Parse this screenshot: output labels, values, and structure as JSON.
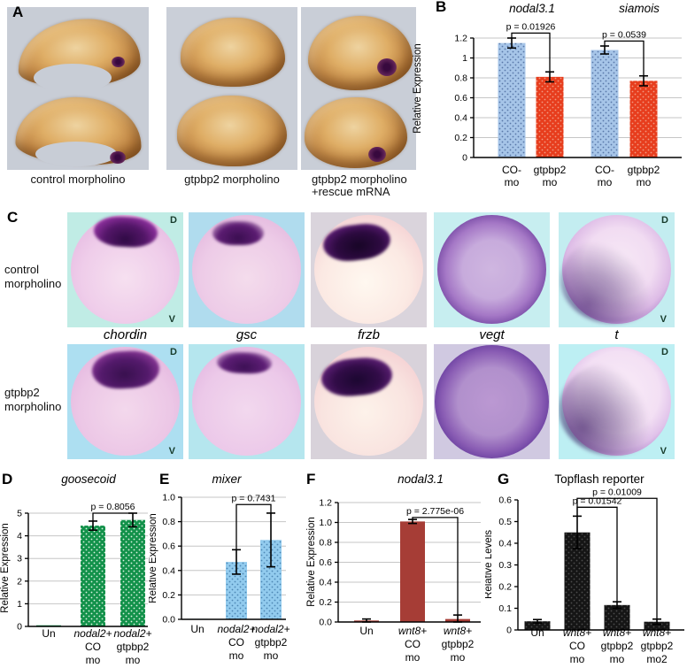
{
  "figure": {
    "panels": {
      "A": {
        "letter": "A",
        "captions": [
          "control morpholino",
          "gtpbp2 morpholino",
          "gtpbp2 morpholino\n+rescue mRNA"
        ]
      },
      "C": {
        "letter": "C",
        "row_labels": [
          "control\nmorpholino",
          "gtpbp2\nmorpholino"
        ],
        "gene_labels": [
          "chordin",
          "gsc",
          "frzb",
          "vegt",
          "t"
        ],
        "dorsal": "D",
        "ventral": "V"
      }
    }
  },
  "palette": {
    "blue": {
      "fill": "#a6c5e8",
      "dot": "#5878a8"
    },
    "red": {
      "fill": "#e73d1d",
      "dot": "#f19a82"
    },
    "green": {
      "fill": "#12914a",
      "dot": "#dff3e4"
    },
    "lightblue": {
      "fill": "#92cbee",
      "dot": "#4e86b4"
    },
    "brick": {
      "fill": "#a63d36",
      "dot": null
    },
    "black": {
      "fill": "#151515",
      "dot": "#4d4d4d"
    }
  },
  "chart_data": [
    {
      "id": "B",
      "panel_letter": "B",
      "type": "bar",
      "titles": [
        {
          "text": "nodal3.1",
          "italic": true
        },
        {
          "text": "siamois",
          "italic": true
        }
      ],
      "ylabel": "Relative Expression",
      "ylim": [
        0,
        1.2
      ],
      "ystep": 0.2,
      "ytick_labels": [
        "0",
        "0.2",
        "0.4",
        "0.6",
        "0.8",
        "1",
        "1.2"
      ],
      "grid": true,
      "categories": [
        "CO- mo",
        "gtpbp2 mo",
        "CO- mo",
        "gtpbp2 mo"
      ],
      "values": [
        1.15,
        0.81,
        1.08,
        0.77
      ],
      "errors": [
        0.05,
        0.05,
        0.04,
        0.05
      ],
      "bars": [
        {
          "label_lines": [
            {
              "t": "CO-"
            },
            {
              "t": "mo"
            }
          ],
          "color": "blue"
        },
        {
          "label_lines": [
            {
              "t": "gtpbp2"
            },
            {
              "t": "mo"
            }
          ],
          "color": "red"
        },
        {
          "label_lines": [
            {
              "t": "CO-"
            },
            {
              "t": "mo"
            }
          ],
          "color": "blue"
        },
        {
          "label_lines": [
            {
              "t": "gtpbp2"
            },
            {
              "t": "mo"
            }
          ],
          "color": "red"
        }
      ],
      "brackets": [
        {
          "from": 0,
          "to": 1,
          "level": 1.25,
          "label": "p = 0.01926"
        },
        {
          "from": 2,
          "to": 3,
          "level": 1.17,
          "label": "p = 0.0539"
        }
      ]
    },
    {
      "id": "D",
      "panel_letter": "D",
      "type": "bar",
      "titles": [
        {
          "text": "goosecoid",
          "italic": true
        }
      ],
      "ylabel": "Relative Expression",
      "ylim": [
        0,
        5
      ],
      "ystep": 1,
      "ytick_labels": [
        "0",
        "1",
        "2",
        "3",
        "4",
        "5"
      ],
      "grid": true,
      "categories": [
        "Un",
        "nodal2+ CO mo",
        "nodal2+ gtpbp2 mo"
      ],
      "values": [
        0.05,
        4.45,
        4.7
      ],
      "errors": [
        0,
        0.2,
        0.3
      ],
      "bars": [
        {
          "label_lines": [
            {
              "t": "Un"
            }
          ],
          "color": "green"
        },
        {
          "label_lines": [
            {
              "t": "nodal2+",
              "i": true
            },
            {
              "t": "CO"
            },
            {
              "t": "mo"
            }
          ],
          "color": "green"
        },
        {
          "label_lines": [
            {
              "t": "nodal2+",
              "i": true
            },
            {
              "t": "gtpbp2"
            },
            {
              "t": "mo"
            }
          ],
          "color": "green"
        }
      ],
      "brackets": [
        {
          "from": 1,
          "to": 2,
          "level": 5.0,
          "label": "p = 0.8056"
        }
      ]
    },
    {
      "id": "E",
      "panel_letter": "E",
      "type": "bar",
      "titles": [
        {
          "text": "mixer",
          "italic": true
        }
      ],
      "ylabel": "Relative Expression",
      "ylim": [
        0,
        1.0
      ],
      "ystep": 0.2,
      "ytick_labels": [
        "0.0",
        "0.2",
        "0.4",
        "0.6",
        "0.8",
        "1.0"
      ],
      "grid": true,
      "categories": [
        "Un",
        "nodal2+ CO mo",
        "nodal2+ gtpbp2 mo"
      ],
      "values": [
        0.004,
        0.47,
        0.65
      ],
      "errors": [
        0,
        0.1,
        0.22
      ],
      "bars": [
        {
          "label_lines": [
            {
              "t": "Un"
            }
          ],
          "color": "lightblue"
        },
        {
          "label_lines": [
            {
              "t": "nodal2+",
              "i": true
            },
            {
              "t": "CO"
            },
            {
              "t": "mo"
            }
          ],
          "color": "lightblue"
        },
        {
          "label_lines": [
            {
              "t": "nodal2+",
              "i": true
            },
            {
              "t": "gtpbp2"
            },
            {
              "t": "mo"
            }
          ],
          "color": "lightblue"
        }
      ],
      "brackets": [
        {
          "from": 1,
          "to": 2,
          "level": 0.94,
          "label": "p = 0.7431"
        }
      ]
    },
    {
      "id": "F",
      "panel_letter": "F",
      "type": "bar",
      "titles": [
        {
          "text": "nodal3.1",
          "italic": true
        }
      ],
      "ylabel": "Relative Expression",
      "ylim": [
        0,
        1.2
      ],
      "ystep": 0.2,
      "ytick_labels": [
        "0.0",
        "0.2",
        "0.4",
        "0.6",
        "0.8",
        "1.0",
        "1.2"
      ],
      "grid": true,
      "categories": [
        "Un",
        "wnt8+ CO mo",
        "wnt8+ gtpbp2 mo"
      ],
      "values": [
        0.015,
        1.01,
        0.03
      ],
      "errors": [
        0.015,
        0.02,
        0.04
      ],
      "bars": [
        {
          "label_lines": [
            {
              "t": "Un"
            }
          ],
          "color": "brick"
        },
        {
          "label_lines": [
            {
              "t": "wnt8+",
              "i": true
            },
            {
              "t": "CO"
            },
            {
              "t": "mo"
            }
          ],
          "color": "brick"
        },
        {
          "label_lines": [
            {
              "t": "wnt8+",
              "i": true
            },
            {
              "t": "gtpbp2"
            },
            {
              "t": "mo"
            }
          ],
          "color": "brick"
        }
      ],
      "brackets": [
        {
          "from": 1,
          "to": 2,
          "level": 1.05,
          "label": "p = 2.775e-06"
        }
      ]
    },
    {
      "id": "G",
      "panel_letter": "G",
      "type": "bar",
      "titles": [
        {
          "text": "Topflash reporter",
          "italic": false
        }
      ],
      "ylabel": "Relative Levels",
      "ylim": [
        0,
        0.6
      ],
      "ystep": 0.1,
      "ytick_labels": [
        "0",
        "0.1",
        "0.2",
        "0.3",
        "0.4",
        "0.5",
        "0.6"
      ],
      "grid": false,
      "categories": [
        "Un",
        "wnt8+ CO mo",
        "wnt8+ gtpbp2 mo",
        "wnt8+ gtpbp2 mo2"
      ],
      "values": [
        0.04,
        0.45,
        0.115,
        0.038
      ],
      "errors": [
        0.008,
        0.075,
        0.015,
        0.012
      ],
      "bars": [
        {
          "label_lines": [
            {
              "t": "Un"
            }
          ],
          "color": "black"
        },
        {
          "label_lines": [
            {
              "t": "wnt8+",
              "i": true
            },
            {
              "t": "CO"
            },
            {
              "t": "mo"
            }
          ],
          "color": "black"
        },
        {
          "label_lines": [
            {
              "t": "wnt8+",
              "i": true
            },
            {
              "t": "gtpbp2"
            },
            {
              "t": "mo"
            }
          ],
          "color": "black"
        },
        {
          "label_lines": [
            {
              "t": "wnt8+",
              "i": true
            },
            {
              "t": "gtpbp2"
            },
            {
              "t": "mo2"
            }
          ],
          "color": "black"
        }
      ],
      "brackets": [
        {
          "from": 1,
          "to": 3,
          "level": 0.607,
          "label": "p = 0.01009"
        },
        {
          "from": 1,
          "to": 2,
          "level": 0.566,
          "label": "p = 0.01542"
        }
      ]
    }
  ]
}
